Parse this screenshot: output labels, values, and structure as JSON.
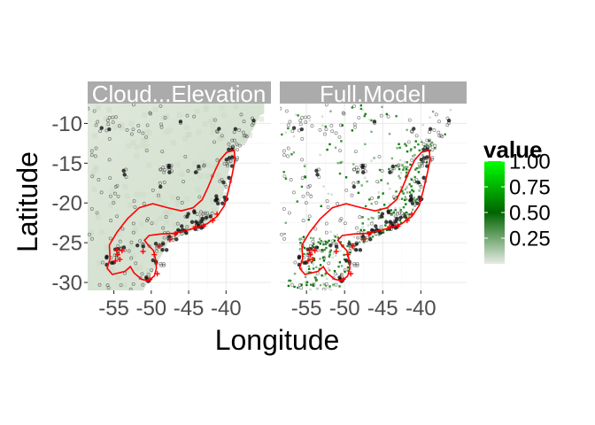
{
  "chart_data": {
    "type": "heatmap",
    "title": "",
    "xlabel": "Longitude",
    "ylabel": "Latitude",
    "xlim": [
      -58.5,
      -34.0
    ],
    "ylim": [
      -31.0,
      -7.5
    ],
    "x_ticks": [
      -55,
      -50,
      -45,
      -40
    ],
    "x_tick_labels": [
      "-55",
      "-50",
      "-45",
      "-40"
    ],
    "y_ticks": [
      -10,
      -15,
      -20,
      -25,
      -30
    ],
    "y_tick_labels": [
      "-10",
      "-15",
      "-20",
      "-25",
      "-30"
    ],
    "grid": true,
    "panels": [
      {
        "name": "Cloud...Elevation",
        "fill_style": "uniform-light-green"
      },
      {
        "name": "Full.Model",
        "fill_style": "sparse-green-coastal"
      }
    ],
    "legend": {
      "title": "value",
      "placement": "right",
      "range": [
        0,
        1
      ],
      "breaks": [
        1.0,
        0.75,
        0.5,
        0.25
      ],
      "break_labels": [
        "1.00",
        "0.75",
        "0.50",
        "0.25"
      ],
      "colors": [
        "#e6ece6",
        "#006400",
        "#00ff00"
      ]
    },
    "region_outline": {
      "color": "#ff0000",
      "points": [
        [
          -55.5,
          -27.0
        ],
        [
          -55.9,
          -28.2
        ],
        [
          -55.2,
          -29.0
        ],
        [
          -53.5,
          -28.6
        ],
        [
          -52.8,
          -28.0
        ],
        [
          -52.3,
          -28.8
        ],
        [
          -51.3,
          -29.6
        ],
        [
          -50.4,
          -29.8
        ],
        [
          -49.6,
          -29.2
        ],
        [
          -49.3,
          -28.2
        ],
        [
          -49.4,
          -27.2
        ],
        [
          -49.7,
          -26.0
        ],
        [
          -50.4,
          -25.3
        ],
        [
          -50.9,
          -24.7
        ],
        [
          -50.3,
          -24.1
        ],
        [
          -48.8,
          -23.9
        ],
        [
          -47.0,
          -23.8
        ],
        [
          -45.5,
          -23.5
        ],
        [
          -44.0,
          -23.1
        ],
        [
          -42.5,
          -22.6
        ],
        [
          -41.2,
          -21.7
        ],
        [
          -40.2,
          -20.3
        ],
        [
          -39.7,
          -18.5
        ],
        [
          -39.2,
          -16.5
        ],
        [
          -38.8,
          -14.6
        ],
        [
          -38.9,
          -13.4
        ],
        [
          -39.9,
          -13.6
        ],
        [
          -40.8,
          -14.6
        ],
        [
          -41.6,
          -16.2
        ],
        [
          -42.4,
          -18.0
        ],
        [
          -43.2,
          -19.6
        ],
        [
          -44.4,
          -20.6
        ],
        [
          -46.0,
          -21.0
        ],
        [
          -47.8,
          -20.6
        ],
        [
          -49.8,
          -20.1
        ],
        [
          -51.6,
          -20.6
        ],
        [
          -53.2,
          -22.0
        ],
        [
          -54.6,
          -23.7
        ],
        [
          -55.6,
          -25.3
        ],
        [
          -55.5,
          -27.0
        ]
      ]
    },
    "point_clusters": [
      {
        "lon": -56.3,
        "lat": -10.2,
        "n": 4
      },
      {
        "lon": -52.5,
        "lat": -10.6,
        "n": 3
      },
      {
        "lon": -47.9,
        "lat": -15.8,
        "n": 10
      },
      {
        "lon": -43.4,
        "lat": -15.6,
        "n": 6
      },
      {
        "lon": -39.2,
        "lat": -14.8,
        "n": 12
      },
      {
        "lon": -38.9,
        "lat": -12.7,
        "n": 10
      },
      {
        "lon": -38.1,
        "lat": -11.2,
        "n": 6
      },
      {
        "lon": -36.9,
        "lat": -9.6,
        "n": 5
      },
      {
        "lon": -40.2,
        "lat": -17.4,
        "n": 8
      },
      {
        "lon": -40.6,
        "lat": -19.6,
        "n": 10
      },
      {
        "lon": -42.6,
        "lat": -21.6,
        "n": 12
      },
      {
        "lon": -43.8,
        "lat": -22.8,
        "n": 14
      },
      {
        "lon": -45.9,
        "lat": -23.5,
        "n": 12
      },
      {
        "lon": -47.4,
        "lat": -24.3,
        "n": 10
      },
      {
        "lon": -48.6,
        "lat": -25.6,
        "n": 10
      },
      {
        "lon": -49.1,
        "lat": -27.4,
        "n": 8
      },
      {
        "lon": -50.8,
        "lat": -29.4,
        "n": 8
      },
      {
        "lon": -54.3,
        "lat": -26.0,
        "n": 12
      },
      {
        "lon": -55.2,
        "lat": -27.2,
        "n": 8
      },
      {
        "lon": -51.6,
        "lat": -25.2,
        "n": 5
      },
      {
        "lon": -45.0,
        "lat": -21.3,
        "n": 5
      },
      {
        "lon": -55.2,
        "lat": -19.4,
        "n": 4
      },
      {
        "lon": -49.0,
        "lat": -18.0,
        "n": 4
      },
      {
        "lon": -41.3,
        "lat": -11.2,
        "n": 4
      },
      {
        "lon": -45.3,
        "lat": -9.5,
        "n": 3
      },
      {
        "lon": -53.0,
        "lat": -16.2,
        "n": 3
      }
    ],
    "highlight_points": {
      "color": "#ff0000",
      "points": [
        [
          -54.5,
          -26.5
        ],
        [
          -54.8,
          -27.3
        ],
        [
          -54.2,
          -27.1
        ],
        [
          -54.6,
          -25.9
        ],
        [
          -53.9,
          -26.0
        ],
        [
          -51.1,
          -26.1
        ],
        [
          -49.6,
          -26.5
        ],
        [
          -48.9,
          -25.4
        ],
        [
          -47.5,
          -24.6
        ],
        [
          -46.8,
          -23.9
        ],
        [
          -44.1,
          -23.0
        ],
        [
          -43.0,
          -22.9
        ],
        [
          -41.8,
          -22.2
        ],
        [
          -41.2,
          -21.4
        ],
        [
          -49.2,
          -28.9
        ],
        [
          -50.2,
          -29.6
        ]
      ]
    }
  }
}
